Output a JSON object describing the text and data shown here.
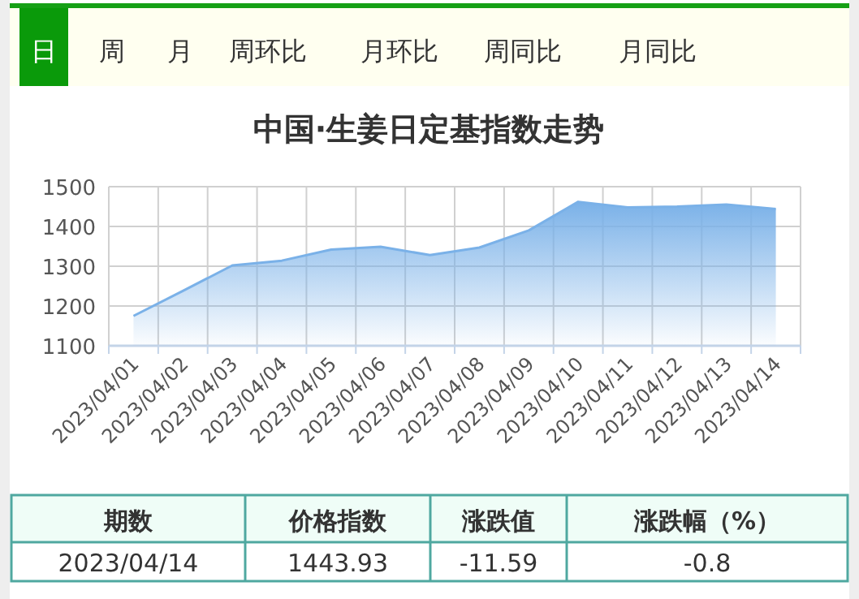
{
  "chart_data": {
    "type": "area",
    "title": "中国·生姜日定基指数走势",
    "categories": [
      "2023/04/01",
      "2023/04/02",
      "2023/04/03",
      "2023/04/04",
      "2023/04/05",
      "2023/04/06",
      "2023/04/07",
      "2023/04/08",
      "2023/04/09",
      "2023/04/10",
      "2023/04/11",
      "2023/04/12",
      "2023/04/13",
      "2023/04/14"
    ],
    "series": [
      {
        "color": "#7ab1e8",
        "values": [
          1175,
          1238,
          1302,
          1314,
          1342,
          1349,
          1328,
          1347,
          1390,
          1462,
          1448,
          1450,
          1455,
          1443.93
        ]
      }
    ],
    "ylim": [
      1100,
      1500
    ],
    "yticks": [
      1100,
      1200,
      1300,
      1400,
      1500
    ],
    "grid": true,
    "annotations": [
      "日",
      "周",
      "月",
      "周环比",
      "月环比",
      "周同比",
      "月同比",
      "期数",
      "价格指数",
      "涨跌值",
      "涨跌幅（%）",
      "2023/04/14",
      "1443.93",
      "-11.59",
      "-0.8"
    ]
  }
}
